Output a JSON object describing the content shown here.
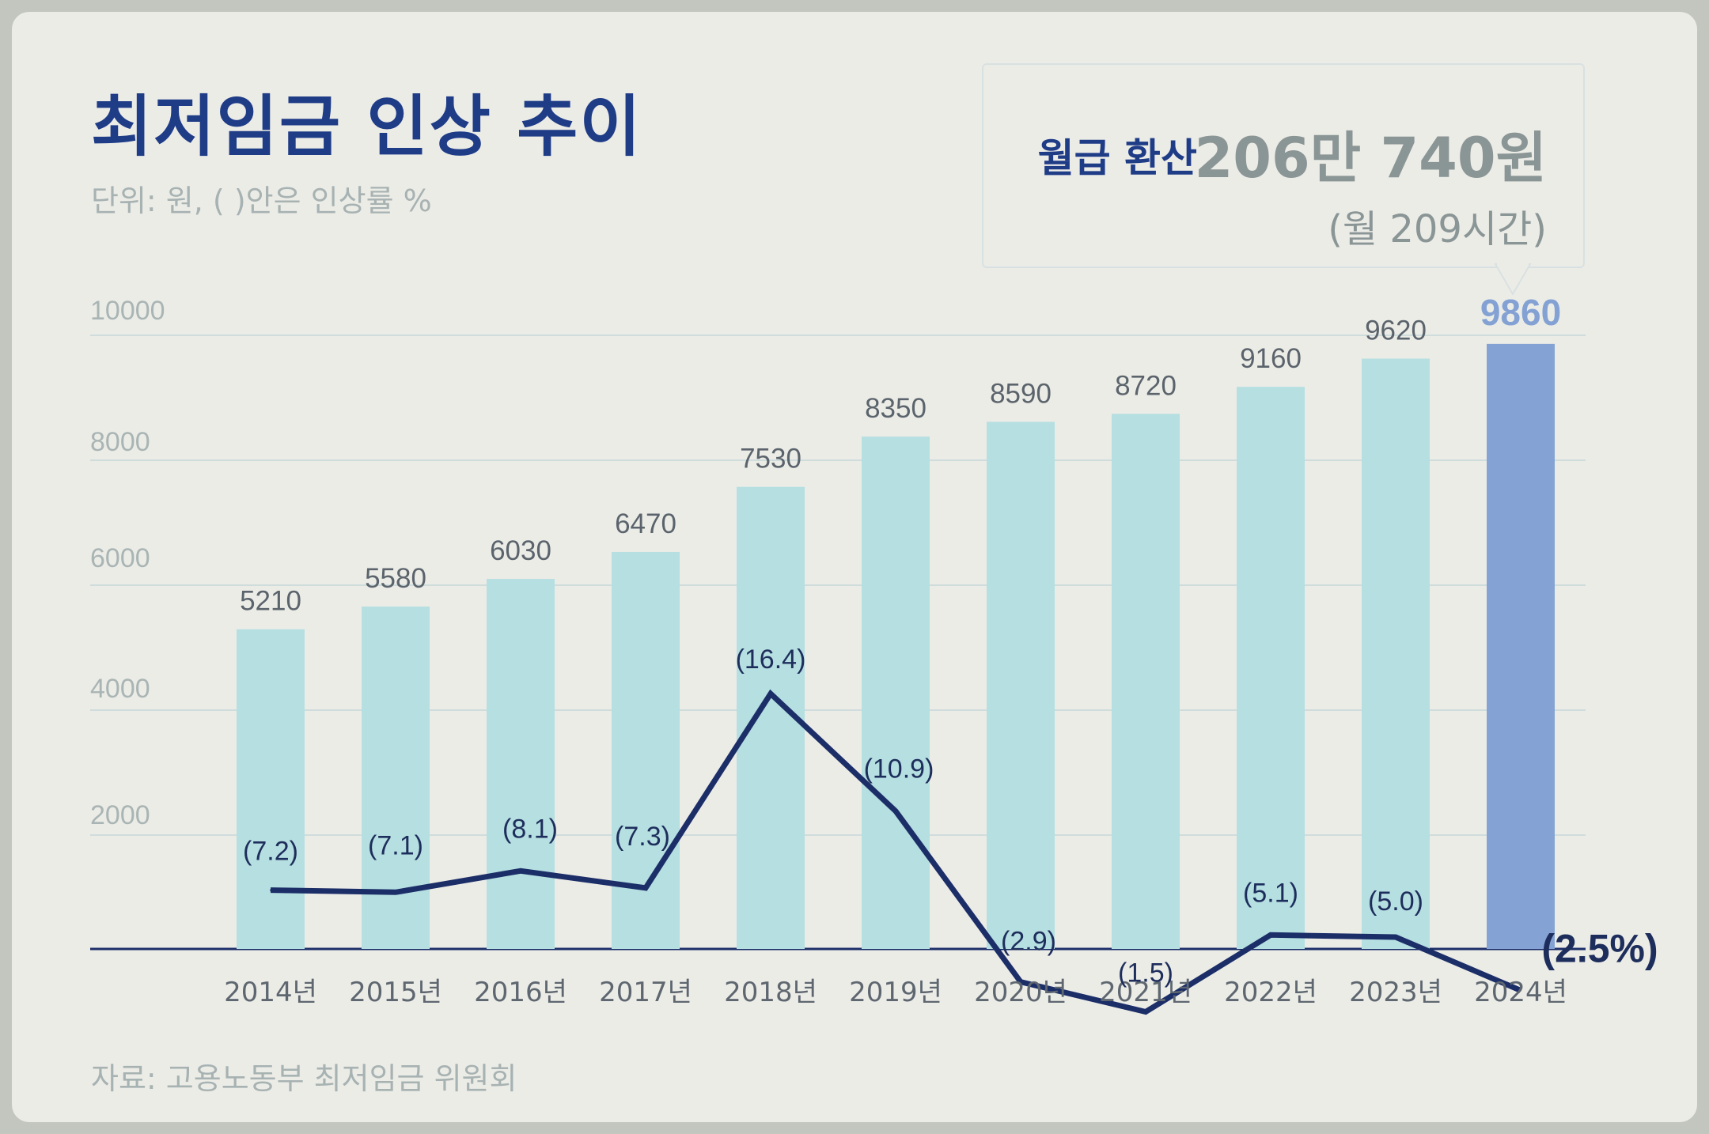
{
  "title": "최저임금 인상 추이",
  "subtitle": "단위: 원, ( )안은 인상률 %",
  "callout": {
    "label": "월급 환산",
    "value": "206만 740원",
    "note": "(월 209시간)"
  },
  "source": "자료: 고용노동부 최저임금 위원회",
  "colors": {
    "bar": "#b5dfe1",
    "bar_highlight": "#84a3d4",
    "line": "#1c2e68",
    "title": "#1f3c87"
  },
  "chart_data": {
    "type": "bar",
    "title": "최저임금 인상 추이",
    "categories": [
      "2014년",
      "2015년",
      "2016년",
      "2017년",
      "2018년",
      "2019년",
      "2020년",
      "2021년",
      "2022년",
      "2023년",
      "2024년"
    ],
    "series": [
      {
        "name": "최저임금 (원)",
        "type": "bar",
        "values": [
          5210,
          5580,
          6030,
          6470,
          7530,
          8350,
          8590,
          8720,
          9160,
          9620,
          9860
        ],
        "labels": [
          "5210",
          "5580",
          "6030",
          "6470",
          "7530",
          "8350",
          "8590",
          "8720",
          "9160",
          "9620",
          "9860"
        ],
        "highlight_index": 10
      },
      {
        "name": "인상률 (%)",
        "type": "line",
        "values": [
          7.2,
          7.1,
          8.1,
          7.3,
          16.4,
          10.9,
          2.9,
          1.5,
          5.1,
          5.0,
          2.5
        ],
        "labels": [
          "(7.2)",
          "(7.1)",
          "(8.1)",
          "(7.3)",
          "(16.4)",
          "(10.9)",
          "(2.9)",
          "(1.5)",
          "(5.1)",
          "(5.0)",
          "(2.5%)"
        ]
      }
    ],
    "yticks": [
      "10000",
      "8000",
      "6000",
      "4000",
      "2000"
    ],
    "ylim": [
      0,
      10000
    ],
    "grid": true
  }
}
